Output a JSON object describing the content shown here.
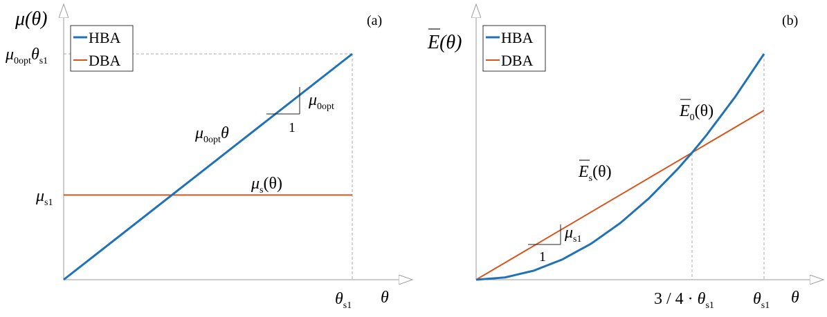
{
  "colors": {
    "hba": "#1f72b8",
    "dba": "#d95319",
    "axis": "#333333",
    "arrow": "#999999",
    "guide": "#aaaaaa"
  },
  "panel_a": {
    "panel_label": "(a)",
    "y_axis_label": "μ(θ)",
    "x_axis_label": "θ",
    "y_tick_top": {
      "main": "μ",
      "sub": "0opt",
      "tail": "θ",
      "tail_sub": "s1"
    },
    "y_tick_mid": {
      "main": "μ",
      "sub": "s1"
    },
    "x_tick": {
      "main": "θ",
      "sub": "s1"
    },
    "legend": [
      "HBA",
      "DBA"
    ],
    "line_label_hba": {
      "main": "μ",
      "sub": "0opt",
      "tail": "θ"
    },
    "line_label_dba": {
      "main": "μ",
      "sub": "s",
      "tail": "(θ)"
    },
    "slope_run": "1",
    "slope_rise": {
      "main": "μ",
      "sub": "0opt"
    }
  },
  "panel_b": {
    "panel_label": "(b)",
    "y_axis_label": "E(θ)",
    "x_axis_label": "θ",
    "x_tick_mid": {
      "pre": "3 / 4 · ",
      "main": "θ",
      "sub": "s1"
    },
    "x_tick_end": {
      "main": "θ",
      "sub": "s1"
    },
    "legend": [
      "HBA",
      "DBA"
    ],
    "curve_label_hba": {
      "main": "E",
      "sub": "0",
      "tail": "(θ)"
    },
    "curve_label_dba": {
      "main": "E",
      "sub": "s",
      "tail": "(θ)"
    },
    "slope_run": "1",
    "slope_rise": {
      "main": "μ",
      "sub": "s1"
    }
  },
  "chart_data": [
    {
      "type": "line",
      "x_axis": "θ (normalized to θ_s1)",
      "y_axis": "μ(θ) (normalized to μ_0opt·θ_s1)",
      "xlim": [
        0,
        1
      ],
      "ylim": [
        0,
        1
      ],
      "grid": false,
      "legend_position": "top-left",
      "series": [
        {
          "name": "HBA",
          "x": [
            0,
            1
          ],
          "y": [
            0,
            1
          ]
        },
        {
          "name": "DBA",
          "x": [
            0,
            1
          ],
          "y": [
            0.375,
            0.375
          ]
        }
      ]
    },
    {
      "type": "line",
      "x_axis": "θ (normalized to θ_s1)",
      "y_axis": "E(θ) (normalized)",
      "xlim": [
        0,
        1
      ],
      "ylim": [
        0,
        1
      ],
      "grid": false,
      "legend_position": "top-left",
      "series": [
        {
          "name": "HBA",
          "x": [
            0,
            0.1,
            0.2,
            0.3,
            0.4,
            0.5,
            0.6,
            0.7,
            0.75,
            0.8,
            0.9,
            1.0
          ],
          "y": [
            0,
            0.0046,
            0.0185,
            0.0416,
            0.074,
            0.1156,
            0.1664,
            0.2265,
            0.26,
            0.2958,
            0.3744,
            0.4622
          ]
        },
        {
          "name": "DBA",
          "x": [
            0,
            1
          ],
          "y": [
            0,
            0.3467
          ]
        }
      ]
    }
  ]
}
